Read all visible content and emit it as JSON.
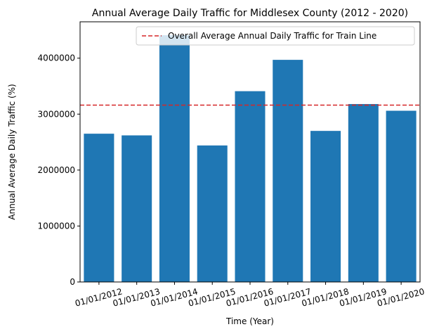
{
  "chart_data": {
    "type": "bar",
    "title": "Annual Average Daily Traffic for Middlesex County (2012 - 2020)",
    "xlabel": "Time (Year)",
    "ylabel": "Annual Average Daily Traffic (%)",
    "categories": [
      "01/01/2012",
      "01/01/2013",
      "01/01/2014",
      "01/01/2015",
      "01/01/2016",
      "01/01/2017",
      "01/01/2018",
      "01/01/2019",
      "01/01/2020"
    ],
    "series": [
      {
        "values": [
          2650000,
          2620000,
          4410000,
          2440000,
          3410000,
          3970000,
          2700000,
          3180000,
          3060000
        ]
      }
    ],
    "ylim": [
      0,
      4650000
    ],
    "yticks": [
      0,
      1000000,
      2000000,
      3000000,
      4000000
    ],
    "ytick_labels": [
      "0",
      "1000000",
      "2000000",
      "3000000",
      "4000000"
    ],
    "reference_line": {
      "label": "Overall Average Annual Daily Traffic for Train Line",
      "value": 3160000,
      "style": "dashed",
      "color": "#d62728"
    },
    "bar_color": "#1f77b4",
    "grid": false,
    "legend_position": "top-right",
    "xtick_rotation_deg": 15
  }
}
